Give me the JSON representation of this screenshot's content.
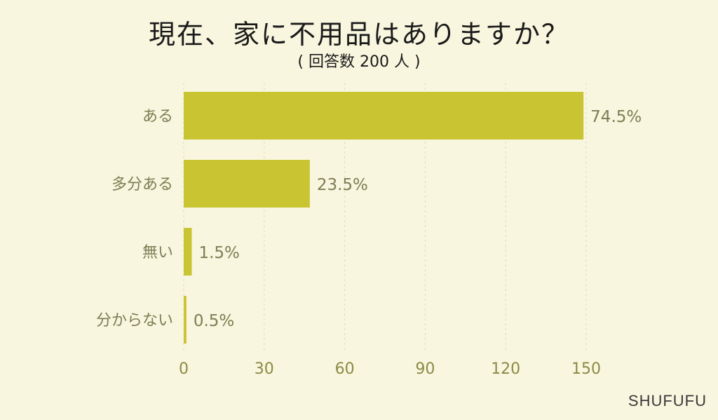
{
  "chart_data": {
    "type": "bar",
    "orientation": "horizontal",
    "title": "現在、家に不用品はありますか？",
    "subtitle": "( 回答数 200 人 )",
    "categories": [
      "ある",
      "多分ある",
      "無い",
      "分からない"
    ],
    "values": [
      149,
      47,
      3,
      1
    ],
    "data_labels": [
      "74.5%",
      "23.5%",
      "1.5%",
      "0.5%"
    ],
    "xlim": [
      0,
      150
    ],
    "xticks": [
      "0",
      "30",
      "60",
      "90",
      "120",
      "150"
    ],
    "grid": true,
    "xlabel": "",
    "ylabel": "",
    "colors": {
      "bar": "#c9c431",
      "label": "#7d7d55",
      "tick": "#8c8a45",
      "grid": "#dcdac0"
    }
  },
  "brand": "SHUFUFU"
}
